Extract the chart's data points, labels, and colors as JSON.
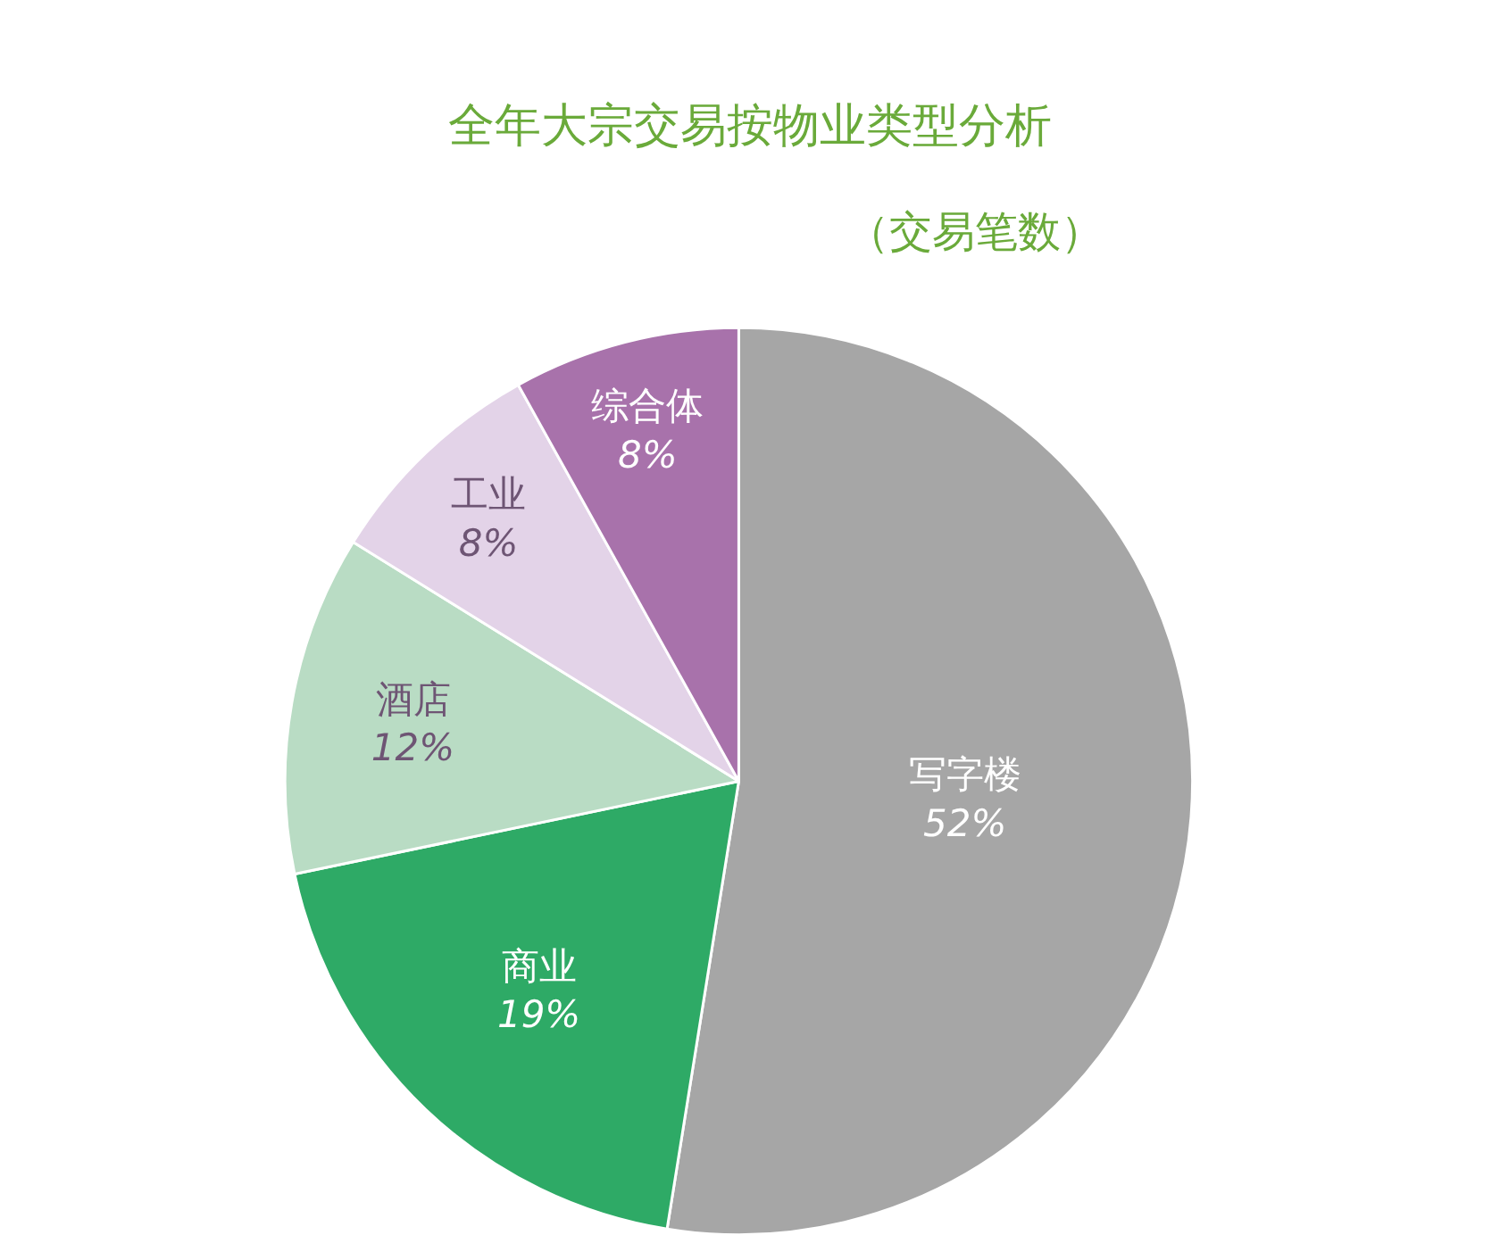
{
  "chart_data": {
    "type": "pie",
    "title": "全年大宗交易按物业类型分析",
    "subtitle": "（交易笔数）",
    "categories": [
      "写字楼",
      "商业",
      "酒店",
      "工业",
      "综合体"
    ],
    "values": [
      52,
      19,
      12,
      8,
      8
    ],
    "value_labels": [
      "52%",
      "19%",
      "12%",
      "8%",
      "8%"
    ],
    "colors": [
      "#a6a6a6",
      "#2eaa66",
      "#b9dcc4",
      "#e3d3e8",
      "#a872ab"
    ],
    "legend": false
  }
}
